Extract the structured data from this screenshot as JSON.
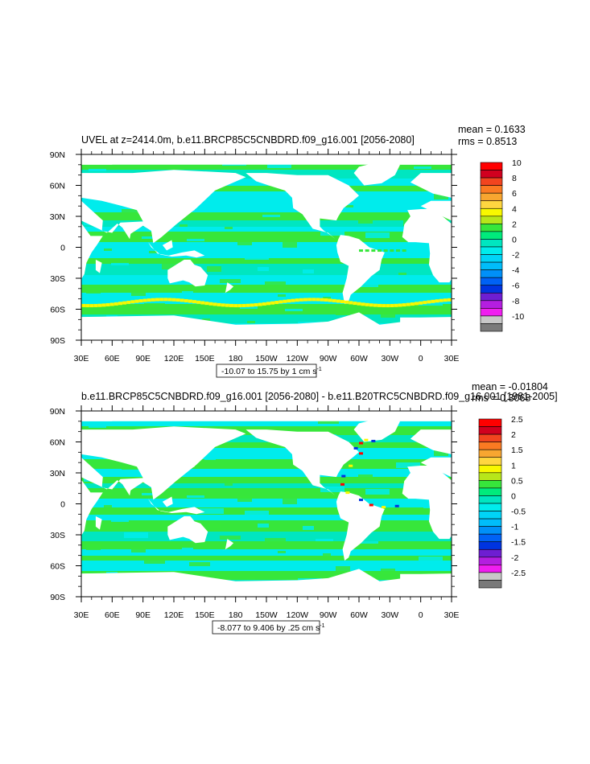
{
  "chart_data": [
    {
      "type": "heatmap",
      "title": "UVEL at z=2414.0m, b.e11.BRCP85C5CNBDRD.f09_g16.001 [2056-2080]",
      "stats": {
        "mean": "mean = 0.1633",
        "rms": "rms = 0.8513"
      },
      "x_ticks": [
        "30E",
        "60E",
        "90E",
        "120E",
        "150E",
        "180",
        "150W",
        "120W",
        "90W",
        "60W",
        "30W",
        "0",
        "30E"
      ],
      "y_ticks": [
        "90N",
        "60N",
        "30N",
        "0",
        "30S",
        "60S",
        "90S"
      ],
      "xlim": [
        30,
        390
      ],
      "ylim": [
        -90,
        90
      ],
      "contour_info": "-10.07 to 15.75 by 1 cm s",
      "contour_info_superscript": "-1",
      "colorbar_labels": [
        "10",
        "8",
        "6",
        "4",
        "2",
        "0",
        "-2",
        "-4",
        "-6",
        "-8",
        "-10"
      ],
      "colorbar_colors": [
        "#ff0000",
        "#d1001f",
        "#f2441f",
        "#fb7a22",
        "#f8a630",
        "#ffd640",
        "#f8f800",
        "#b7e61a",
        "#37e63b",
        "#00eb7c",
        "#00e6c0",
        "#00ecec",
        "#00d4f7",
        "#00bdfa",
        "#0090f8",
        "#0062f5",
        "#0034e0",
        "#6e1ed2",
        "#b41ee0",
        "#f01ef0",
        "#c8c8c8",
        "#7a7a7a"
      ],
      "reversed_colorbar": true
    },
    {
      "type": "heatmap",
      "title": "b.e11.BRCP85C5CNBDRD.f09_g16.001 [2056-2080] - b.e11.B20TRC5CNBDRD.f09_g16.001 [1981-2005]",
      "stats": {
        "mean": "mean = -0.01804",
        "rms": "rms = 0.3068"
      },
      "x_ticks": [
        "30E",
        "60E",
        "90E",
        "120E",
        "150E",
        "180",
        "150W",
        "120W",
        "90W",
        "60W",
        "30W",
        "0",
        "30E"
      ],
      "y_ticks": [
        "90N",
        "60N",
        "30N",
        "0",
        "30S",
        "60S",
        "90S"
      ],
      "xlim": [
        30,
        390
      ],
      "ylim": [
        -90,
        90
      ],
      "contour_info": "-8.077 to 9.406 by .25 cm s",
      "contour_info_superscript": "-1",
      "colorbar_labels": [
        "2.5",
        "2",
        "1.5",
        "1",
        "0.5",
        "0",
        "-0.5",
        "-1",
        "-1.5",
        "-2",
        "-2.5"
      ],
      "colorbar_colors": [
        "#ff0000",
        "#d1001f",
        "#f2441f",
        "#fb7a22",
        "#f8a630",
        "#ffd640",
        "#f8f800",
        "#b7e61a",
        "#37e63b",
        "#00eb7c",
        "#00e6c0",
        "#00ecec",
        "#00d4f7",
        "#00bdfa",
        "#0090f8",
        "#0062f5",
        "#0034e0",
        "#6e1ed2",
        "#b41ee0",
        "#f01ef0",
        "#c8c8c8",
        "#7a7a7a"
      ],
      "reversed_colorbar": true
    }
  ],
  "colors": {
    "ocean_low": "#00ecec",
    "ocean_mid": "#37e63b",
    "ocean_cyan2": "#00e6c0",
    "land": "#ffffff",
    "warm": "#f8f800",
    "hot": "#ff0000",
    "cold": "#0034e0"
  }
}
